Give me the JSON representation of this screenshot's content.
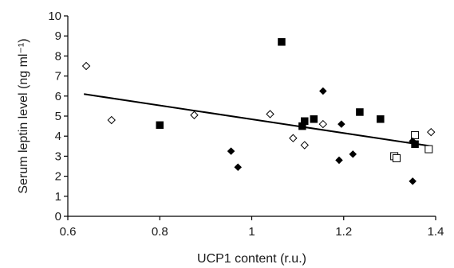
{
  "chart_data": {
    "type": "scatter",
    "title": "",
    "xlabel": "UCP1 content (r.u.)",
    "ylabel": "Serum leptin level (ng ml⁻¹)",
    "xlim": [
      0.6,
      1.4
    ],
    "ylim": [
      0,
      10
    ],
    "x_ticks": [
      "0.6",
      "0.8",
      "1",
      "1.2",
      "1.4"
    ],
    "y_ticks": [
      "0",
      "1",
      "2",
      "3",
      "4",
      "5",
      "6",
      "7",
      "8",
      "9",
      "10"
    ],
    "grid": false,
    "legend": "none",
    "series": [
      {
        "marker": "square-filled",
        "color": "#000000",
        "points": [
          {
            "x": 0.8,
            "y": 4.55
          },
          {
            "x": 1.065,
            "y": 8.7
          },
          {
            "x": 1.11,
            "y": 4.5
          },
          {
            "x": 1.115,
            "y": 4.75
          },
          {
            "x": 1.135,
            "y": 4.85
          },
          {
            "x": 1.235,
            "y": 5.2
          },
          {
            "x": 1.28,
            "y": 4.85
          },
          {
            "x": 1.355,
            "y": 3.6
          }
        ]
      },
      {
        "marker": "square-open",
        "color": "#000000",
        "points": [
          {
            "x": 1.31,
            "y": 3.0
          },
          {
            "x": 1.315,
            "y": 2.9
          },
          {
            "x": 1.355,
            "y": 4.05
          },
          {
            "x": 1.385,
            "y": 3.35
          }
        ]
      },
      {
        "marker": "diamond-filled",
        "color": "#000000",
        "points": [
          {
            "x": 0.955,
            "y": 3.25
          },
          {
            "x": 0.97,
            "y": 2.45
          },
          {
            "x": 1.155,
            "y": 6.25
          },
          {
            "x": 1.19,
            "y": 2.8
          },
          {
            "x": 1.195,
            "y": 4.6
          },
          {
            "x": 1.22,
            "y": 3.1
          },
          {
            "x": 1.35,
            "y": 3.75
          },
          {
            "x": 1.35,
            "y": 1.75
          }
        ]
      },
      {
        "marker": "diamond-open",
        "color": "#000000",
        "points": [
          {
            "x": 0.64,
            "y": 7.5
          },
          {
            "x": 0.695,
            "y": 4.8
          },
          {
            "x": 0.875,
            "y": 5.05
          },
          {
            "x": 1.04,
            "y": 5.1
          },
          {
            "x": 1.09,
            "y": 3.9
          },
          {
            "x": 1.115,
            "y": 3.55
          },
          {
            "x": 1.155,
            "y": 4.6
          },
          {
            "x": 1.39,
            "y": 4.2
          }
        ]
      }
    ],
    "trendline": {
      "x": [
        0.635,
        1.39
      ],
      "y": [
        6.1,
        3.5
      ],
      "color": "#000000"
    }
  }
}
